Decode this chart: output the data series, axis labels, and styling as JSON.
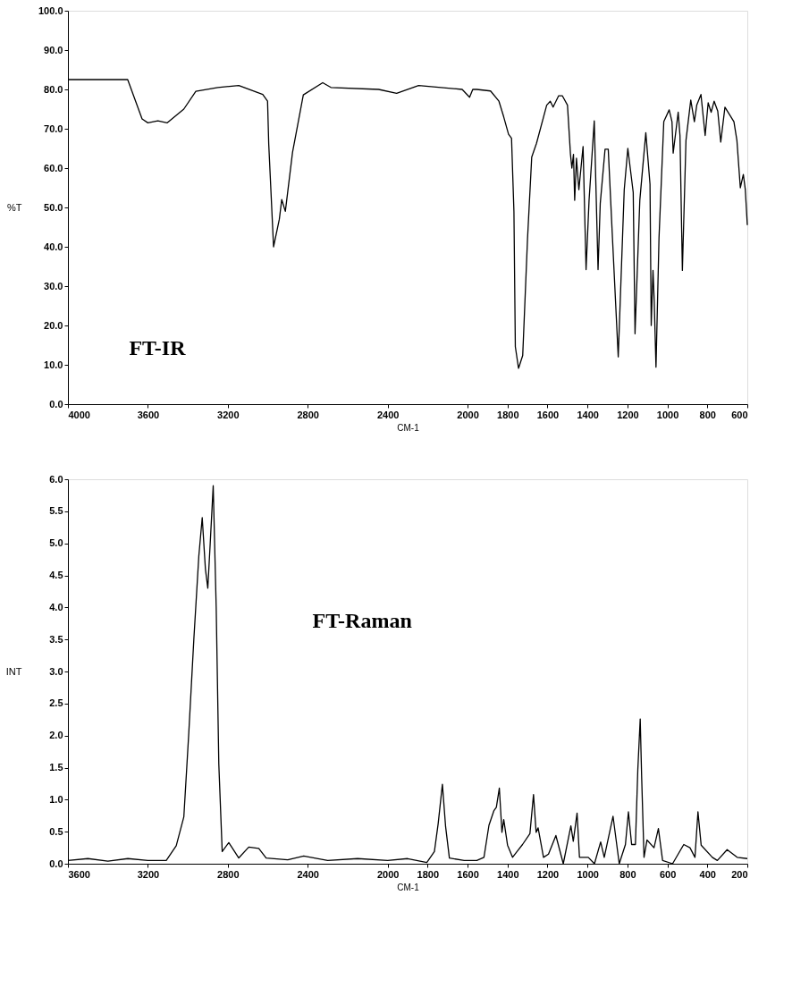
{
  "chart_data": [
    {
      "type": "line",
      "xlabel": "CM-1",
      "ylabel": "%T",
      "annotations": [
        "FT-IR"
      ],
      "xlim": [
        4000,
        600
      ],
      "xticks": [
        4000,
        3600,
        3200,
        2800,
        2400,
        2000,
        1800,
        1600,
        1400,
        1200,
        1000,
        800,
        600
      ],
      "ylim": [
        0,
        100
      ],
      "yticks": [
        {
          "value": 0,
          "label": "0.0"
        },
        {
          "value": 10,
          "label": "10.0"
        },
        {
          "value": 20,
          "label": "20.0"
        },
        {
          "value": 30,
          "label": "30.0"
        },
        {
          "value": 40,
          "label": "40.0"
        },
        {
          "value": 50,
          "label": "50.0"
        },
        {
          "value": 60,
          "label": "60.0"
        },
        {
          "value": 70,
          "label": "70.0"
        },
        {
          "value": 80,
          "label": "80.0"
        },
        {
          "value": 90,
          "label": "90.0"
        },
        {
          "value": 100,
          "label": "100.0"
        }
      ],
      "x": [
        4000,
        3850,
        3701,
        3629,
        3600,
        3550,
        3504,
        3420,
        3360,
        3250,
        3145,
        3025,
        3001,
        2995,
        2971,
        2942,
        2930,
        2912,
        2876,
        2822,
        2725,
        2684,
        2445,
        2355,
        2245,
        2027,
        1990,
        1974,
        1954,
        1885,
        1843,
        1819,
        1795,
        1780,
        1768,
        1761,
        1745,
        1724,
        1700,
        1679,
        1655,
        1604,
        1586,
        1572,
        1544,
        1526,
        1500,
        1485,
        1478,
        1470,
        1464,
        1455,
        1443,
        1422,
        1407,
        1392,
        1366,
        1347,
        1336,
        1312,
        1296,
        1276,
        1246,
        1216,
        1198,
        1171,
        1162,
        1138,
        1108,
        1087,
        1081,
        1072,
        1066,
        1057,
        1042,
        1018,
        991,
        977,
        971,
        946,
        937,
        925,
        907,
        883,
        865,
        853,
        832,
        811,
        796,
        781,
        766,
        748,
        733,
        712,
        667,
        652,
        635,
        620,
        610,
        600
      ],
      "series": [
        {
          "color": "#000000",
          "values": [
            82.5,
            82.5,
            82.5,
            72.5,
            71.5,
            72,
            71.5,
            75,
            79.5,
            80.5,
            81,
            78.7,
            77,
            66,
            40,
            47,
            52,
            49,
            64,
            78.6,
            81.7,
            80.5,
            80,
            79,
            81,
            80,
            78,
            80,
            80,
            79.6,
            77,
            73,
            68.6,
            67.6,
            49,
            14.6,
            9.1,
            12.4,
            42,
            62.8,
            66.3,
            76,
            77,
            75.5,
            78.4,
            78.4,
            76,
            63.5,
            60,
            63.5,
            51.8,
            62.5,
            54.5,
            65.5,
            34.2,
            51.8,
            72,
            34.2,
            51,
            64.8,
            64.8,
            43.4,
            12,
            54.5,
            65,
            53.8,
            17.9,
            51.8,
            69,
            55.9,
            20,
            34,
            26.3,
            9.4,
            42.2,
            71.8,
            74.8,
            71.8,
            63.8,
            74.2,
            68.3,
            34,
            67,
            77.3,
            71.8,
            76,
            78.7,
            68.3,
            76.6,
            74.2,
            77,
            74.5,
            66.6,
            75.5,
            71.8,
            67,
            55,
            58.4,
            54.5,
            45.5
          ]
        }
      ]
    },
    {
      "type": "line",
      "xlabel": "CM-1",
      "ylabel": "INT",
      "annotations": [
        "FT-Raman"
      ],
      "xlim": [
        3600,
        200
      ],
      "xticks": [
        3600,
        3200,
        2800,
        2400,
        2000,
        1800,
        1600,
        1400,
        1200,
        1000,
        800,
        600,
        400,
        200
      ],
      "ylim": [
        0,
        6
      ],
      "yticks": [
        {
          "value": 0,
          "label": "0.0"
        },
        {
          "value": 0.5,
          "label": "0.5"
        },
        {
          "value": 1,
          "label": "1.0"
        },
        {
          "value": 1.5,
          "label": "1.5"
        },
        {
          "value": 2,
          "label": "2.0"
        },
        {
          "value": 2.5,
          "label": "2.5"
        },
        {
          "value": 3,
          "label": "3.0"
        },
        {
          "value": 3.5,
          "label": "3.5"
        },
        {
          "value": 4,
          "label": "4.0"
        },
        {
          "value": 4.5,
          "label": "4.5"
        },
        {
          "value": 5,
          "label": "5.0"
        },
        {
          "value": 5.5,
          "label": "5.5"
        },
        {
          "value": 6,
          "label": "6.0"
        }
      ],
      "x": [
        3600,
        3500,
        3400,
        3300,
        3200,
        3108,
        3058,
        3020,
        2995,
        2970,
        2945,
        2928,
        2912,
        2900,
        2888,
        2873,
        2858,
        2845,
        2828,
        2795,
        2745,
        2695,
        2645,
        2608,
        2500,
        2420,
        2300,
        2150,
        2000,
        1900,
        1804,
        1766,
        1747,
        1726,
        1710,
        1691,
        1617,
        1554,
        1518,
        1493,
        1468,
        1456,
        1441,
        1428,
        1419,
        1400,
        1375,
        1350,
        1325,
        1288,
        1270,
        1257,
        1247,
        1220,
        1195,
        1158,
        1121,
        1083,
        1071,
        1052,
        1040,
        996,
        965,
        934,
        916,
        872,
        841,
        810,
        795,
        779,
        760,
        748,
        736,
        729,
        717,
        702,
        667,
        645,
        624,
        574,
        518,
        487,
        462,
        447,
        431,
        375,
        350,
        301,
        251,
        200
      ],
      "series": [
        {
          "color": "#000000",
          "values": [
            0.05,
            0.08,
            0.04,
            0.08,
            0.05,
            0.05,
            0.28,
            0.73,
            2.05,
            3.5,
            4.8,
            5.4,
            4.6,
            4.3,
            5.0,
            5.9,
            4.0,
            1.56,
            0.19,
            0.33,
            0.09,
            0.26,
            0.24,
            0.09,
            0.06,
            0.12,
            0.05,
            0.08,
            0.05,
            0.08,
            0.02,
            0.19,
            0.63,
            1.24,
            0.58,
            0.09,
            0.05,
            0.05,
            0.1,
            0.6,
            0.83,
            0.88,
            1.18,
            0.49,
            0.69,
            0.29,
            0.1,
            0.2,
            0.3,
            0.47,
            1.08,
            0.49,
            0.56,
            0.1,
            0.15,
            0.44,
            0.0,
            0.59,
            0.35,
            0.79,
            0.1,
            0.1,
            0.0,
            0.34,
            0.1,
            0.74,
            0.0,
            0.3,
            0.81,
            0.3,
            0.3,
            1.47,
            2.26,
            1.37,
            0.1,
            0.37,
            0.25,
            0.55,
            0.05,
            0.0,
            0.3,
            0.25,
            0.1,
            0.81,
            0.29,
            0.1,
            0.05,
            0.22,
            0.1,
            0.08
          ]
        }
      ]
    }
  ]
}
